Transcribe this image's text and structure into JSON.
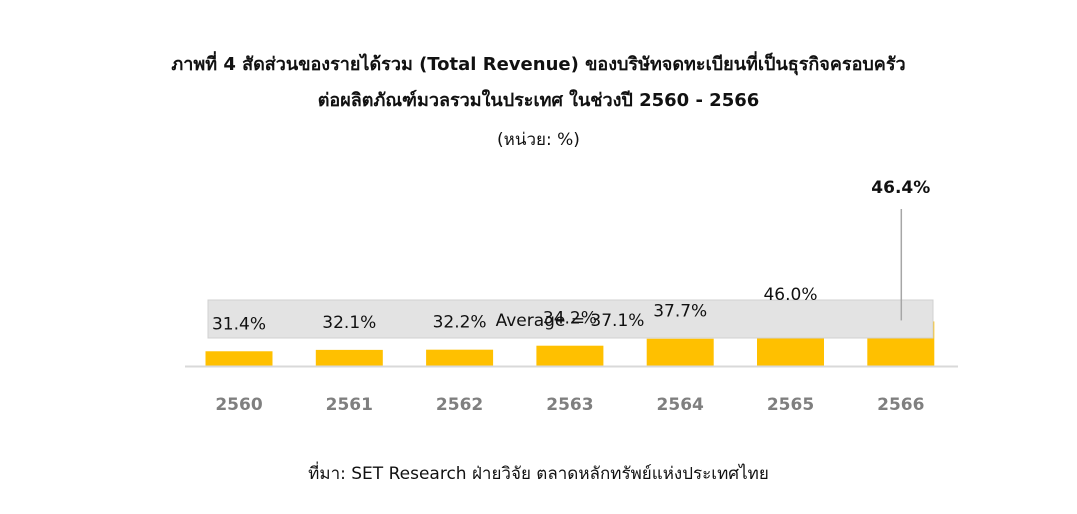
{
  "title_line1": "ภาพที่ 4 สัดส่วนของรายได้รวม (Total Revenue) ของบริษัทจดทะเบียนที่เป็นธุรกิจครอบครัว",
  "title_line2": "ต่อผลิตภัณฑ์มวลรวมในประเทศ ในช่วงปี 2560 - 2566",
  "unit_label": "(หน่วย: %)",
  "source": "ที่มา: SET Research ฝ่ายวิจัย ตลาดหลักทรัพย์แห่งประเทศไทย",
  "colors": {
    "bar": "#FFC000",
    "average_band": "#E3E3E3",
    "axis_label": "#7F7F7F",
    "axis_line": "#D9D9D9"
  },
  "chart_data": {
    "type": "bar",
    "categories": [
      "2560",
      "2561",
      "2562",
      "2563",
      "2564",
      "2565",
      "2566"
    ],
    "values": [
      31.4,
      32.1,
      32.2,
      34.2,
      37.7,
      46.0,
      46.4
    ],
    "value_labels": [
      "31.4%",
      "32.1%",
      "32.2%",
      "34.2%",
      "37.7%",
      "46.0%",
      "46.4%"
    ],
    "highlighted_label_index": 6,
    "average": 37.1,
    "average_label": "Average = 37.1%",
    "legend": "none",
    "grid": false
  }
}
